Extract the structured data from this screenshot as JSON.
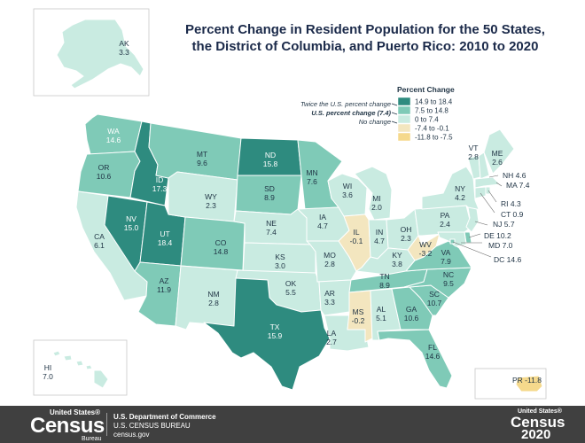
{
  "title": {
    "line1": "Percent Change in Resident Population for the 50 States,",
    "line2": "the District of Columbia, and Puerto Rico: 2010 to 2020"
  },
  "colors": {
    "c1": "#2e8b7f",
    "c2": "#7fcab7",
    "c3": "#c9ebe1",
    "c4": "#f3e6bf",
    "c5": "#f5d98c",
    "border": "#ffffff",
    "footer": "#404040"
  },
  "legend": {
    "title": "Percent Change",
    "items": [
      {
        "label": "14.9 to 18.4",
        "color": "#2e8b7f"
      },
      {
        "label": "7.5 to 14.8",
        "color": "#7fcab7"
      },
      {
        "label": "0 to 7.4",
        "color": "#c9ebe1"
      },
      {
        "label": "-7.4 to -0.1",
        "color": "#f3e6bf"
      },
      {
        "label": "-11.8 to -7.5",
        "color": "#f5d98c"
      }
    ],
    "notes": {
      "twice": "Twice the U.S. percent change",
      "us": "U.S. percent change (7.4)",
      "no_change": "No change"
    }
  },
  "states": {
    "AK": {
      "abbr": "AK",
      "value": "3.3"
    },
    "HI": {
      "abbr": "HI",
      "value": "7.0"
    },
    "WA": {
      "abbr": "WA",
      "value": "14.6"
    },
    "OR": {
      "abbr": "OR",
      "value": "10.6"
    },
    "CA": {
      "abbr": "CA",
      "value": "6.1"
    },
    "ID": {
      "abbr": "ID",
      "value": "17.3"
    },
    "NV": {
      "abbr": "NV",
      "value": "15.0"
    },
    "UT": {
      "abbr": "UT",
      "value": "18.4"
    },
    "AZ": {
      "abbr": "AZ",
      "value": "11.9"
    },
    "MT": {
      "abbr": "MT",
      "value": "9.6"
    },
    "WY": {
      "abbr": "WY",
      "value": "2.3"
    },
    "CO": {
      "abbr": "CO",
      "value": "14.8"
    },
    "NM": {
      "abbr": "NM",
      "value": "2.8"
    },
    "ND": {
      "abbr": "ND",
      "value": "15.8"
    },
    "SD": {
      "abbr": "SD",
      "value": "8.9"
    },
    "NE": {
      "abbr": "NE",
      "value": "7.4"
    },
    "KS": {
      "abbr": "KS",
      "value": "3.0"
    },
    "OK": {
      "abbr": "OK",
      "value": "5.5"
    },
    "TX": {
      "abbr": "TX",
      "value": "15.9"
    },
    "MN": {
      "abbr": "MN",
      "value": "7.6"
    },
    "IA": {
      "abbr": "IA",
      "value": "4.7"
    },
    "MO": {
      "abbr": "MO",
      "value": "2.8"
    },
    "AR": {
      "abbr": "AR",
      "value": "3.3"
    },
    "LA": {
      "abbr": "LA",
      "value": "2.7"
    },
    "WI": {
      "abbr": "WI",
      "value": "3.6"
    },
    "IL": {
      "abbr": "IL",
      "value": "-0.1"
    },
    "MI": {
      "abbr": "MI",
      "value": "2.0"
    },
    "IN": {
      "abbr": "IN",
      "value": "4.7"
    },
    "OH": {
      "abbr": "OH",
      "value": "2.3"
    },
    "KY": {
      "abbr": "KY",
      "value": "3.8"
    },
    "TN": {
      "abbr": "TN",
      "value": "8.9"
    },
    "MS": {
      "abbr": "MS",
      "value": "-0.2"
    },
    "AL": {
      "abbr": "AL",
      "value": "5.1"
    },
    "GA": {
      "abbr": "GA",
      "value": "10.6"
    },
    "FL": {
      "abbr": "FL",
      "value": "14.6"
    },
    "SC": {
      "abbr": "SC",
      "value": "10.7"
    },
    "NC": {
      "abbr": "NC",
      "value": "9.5"
    },
    "VA": {
      "abbr": "VA",
      "value": "7.9"
    },
    "WV": {
      "abbr": "WV",
      "value": "-3.2"
    },
    "PA": {
      "abbr": "PA",
      "value": "2.4"
    },
    "NY": {
      "abbr": "NY",
      "value": "4.2"
    },
    "VT": {
      "abbr": "VT",
      "value": "2.8"
    },
    "ME": {
      "abbr": "ME",
      "value": "2.6"
    },
    "NH": {
      "abbr": "NH",
      "value": "4.6"
    },
    "MA": {
      "abbr": "MA",
      "value": "7.4"
    },
    "RI": {
      "abbr": "RI",
      "value": "4.3"
    },
    "CT": {
      "abbr": "CT",
      "value": "0.9"
    },
    "NJ": {
      "abbr": "NJ",
      "value": "5.7"
    },
    "DE": {
      "abbr": "DE",
      "value": "10.2"
    },
    "MD": {
      "abbr": "MD",
      "value": "7.0"
    },
    "DC": {
      "abbr": "DC",
      "value": "14.6"
    },
    "PR": {
      "abbr": "PR",
      "value": "-11.8"
    }
  },
  "footer": {
    "brand_top": "United States®",
    "brand_main": "Census",
    "brand_sub": "Bureau",
    "dept_line1": "U.S. Department of Commerce",
    "dept_line2": "U.S. CENSUS BUREAU",
    "dept_line3": "census.gov",
    "logo2_top": "United States®",
    "logo2_main": "Census",
    "logo2_year": "2020"
  }
}
